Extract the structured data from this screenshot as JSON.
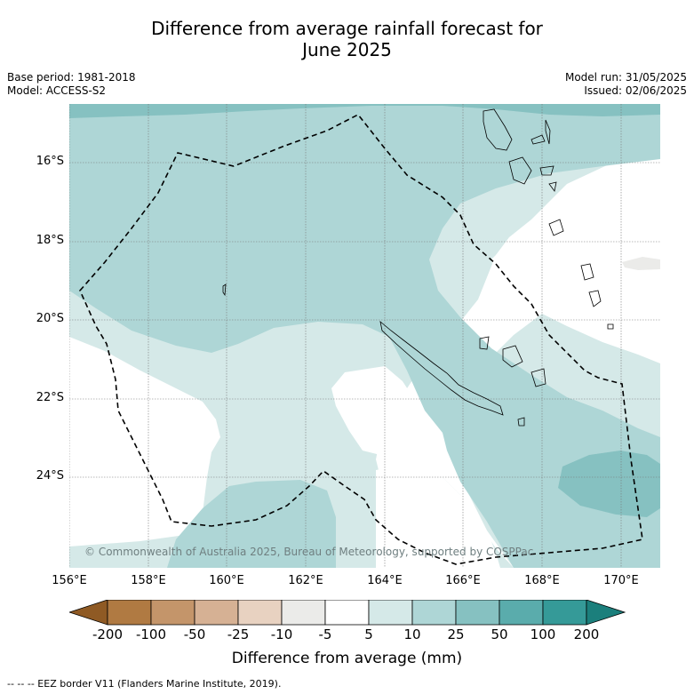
{
  "title": {
    "line1": "Difference from average rainfall forecast for",
    "line2": "June 2025"
  },
  "meta_left": {
    "base_period": "Base period: 1981-2018",
    "model": "Model: ACCESS-S2"
  },
  "meta_right": {
    "model_run": "Model run: 31/05/2025",
    "issued": "Issued: 02/06/2025"
  },
  "lat_labels": [
    "16°S",
    "18°S",
    "20°S",
    "22°S",
    "24°S"
  ],
  "lon_labels": [
    "156°E",
    "158°E",
    "160°E",
    "162°E",
    "164°E",
    "166°E",
    "168°E",
    "170°E"
  ],
  "copyright": "© Commonwealth of Australia 2025, Bureau of Meteorology, supported by COSPPac",
  "colorbar": {
    "ticks": [
      "-200",
      "-100",
      "-50",
      "-25",
      "-10",
      "-5",
      "5",
      "10",
      "25",
      "50",
      "100",
      "200"
    ],
    "colors": [
      "#8f5a24",
      "#b07a42",
      "#c4956a",
      "#d6b194",
      "#e8d2c1",
      "#ebebe9",
      "#ffffff",
      "#d5e9e8",
      "#aed6d6",
      "#86c1c1",
      "#5aacac",
      "#359a98",
      "#1b7f7c"
    ],
    "label": "Difference from average (mm)"
  },
  "legend_note": "--  --  -- EEZ border V11 (Flanders Marine Institute, 2019).",
  "map_colors": {
    "band_10_25": "#d5e9e8",
    "band_25_50": "#aed6d6",
    "band_50_100": "#86c1c1",
    "band_neutral": "#ebebe9"
  }
}
